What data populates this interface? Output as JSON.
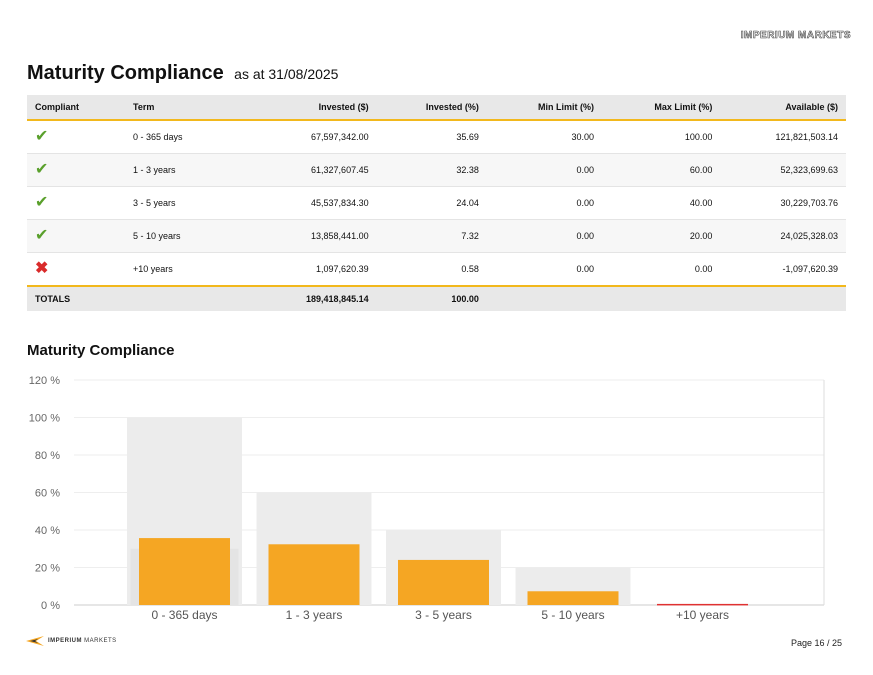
{
  "header": {
    "brand_mark": "IMPERIUM MARKETS"
  },
  "page_title": "Maturity Compliance",
  "page_subtitle": "as at 31/08/2025",
  "colors": {
    "accent": "#f2b81c",
    "bar_invested": "#f5a623",
    "bar_breach": "#e03131",
    "range_band": "#ececec",
    "ok": "#5aa02c",
    "fail": "#d92b2b"
  },
  "table": {
    "columns": [
      "Compliant",
      "Term",
      "Invested ($)",
      "Invested (%)",
      "Min Limit (%)",
      "Max Limit (%)",
      "Available ($)"
    ],
    "rows": [
      {
        "compliant_icon": "check-icon",
        "term": "0 - 365 days",
        "invested": "67,597,342.00",
        "invested_pct": "35.69",
        "min": "30.00",
        "max": "100.00",
        "available": "121,821,503.14"
      },
      {
        "compliant_icon": "check-icon",
        "term": "1 - 3 years",
        "invested": "61,327,607.45",
        "invested_pct": "32.38",
        "min": "0.00",
        "max": "60.00",
        "available": "52,323,699.63"
      },
      {
        "compliant_icon": "check-icon",
        "term": "3 - 5 years",
        "invested": "45,537,834.30",
        "invested_pct": "24.04",
        "min": "0.00",
        "max": "40.00",
        "available": "30,229,703.76"
      },
      {
        "compliant_icon": "check-icon",
        "term": "5 - 10 years",
        "invested": "13,858,441.00",
        "invested_pct": "7.32",
        "min": "0.00",
        "max": "20.00",
        "available": "24,025,328.03"
      },
      {
        "compliant_icon": "cross-icon",
        "term": "+10 years",
        "invested": "1,097,620.39",
        "invested_pct": "0.58",
        "min": "0.00",
        "max": "0.00",
        "available": "-1,097,620.39"
      }
    ],
    "totals": {
      "label": "TOTALS",
      "invested": "189,418,845.14",
      "invested_pct": "100.00"
    }
  },
  "chart_title": "Maturity Compliance",
  "chart_data": {
    "type": "bar",
    "title": "Maturity Compliance",
    "categories": [
      "0 - 365 days",
      "1 - 3 years",
      "3 - 5 years",
      "5 - 10 years",
      "+10 years"
    ],
    "series": [
      {
        "values": [
          35.69,
          32.38,
          24.04,
          7.32,
          0.58
        ]
      }
    ],
    "limits": {
      "min": [
        30,
        0,
        0,
        0,
        0
      ],
      "max": [
        100,
        60,
        40,
        20,
        0
      ]
    },
    "ylim": [
      0,
      120
    ],
    "yticks": [
      0,
      20,
      40,
      60,
      80,
      100,
      120
    ],
    "ytick_labels": [
      "0 %",
      "20 %",
      "40 %",
      "60 %",
      "80 %",
      "100 %",
      "120 %"
    ],
    "grid": true,
    "xlabel": "",
    "ylabel": ""
  },
  "footer": {
    "logo_bold": "IMPERIUM",
    "logo_light": "MARKETS",
    "page": "Page 16 / 25"
  }
}
